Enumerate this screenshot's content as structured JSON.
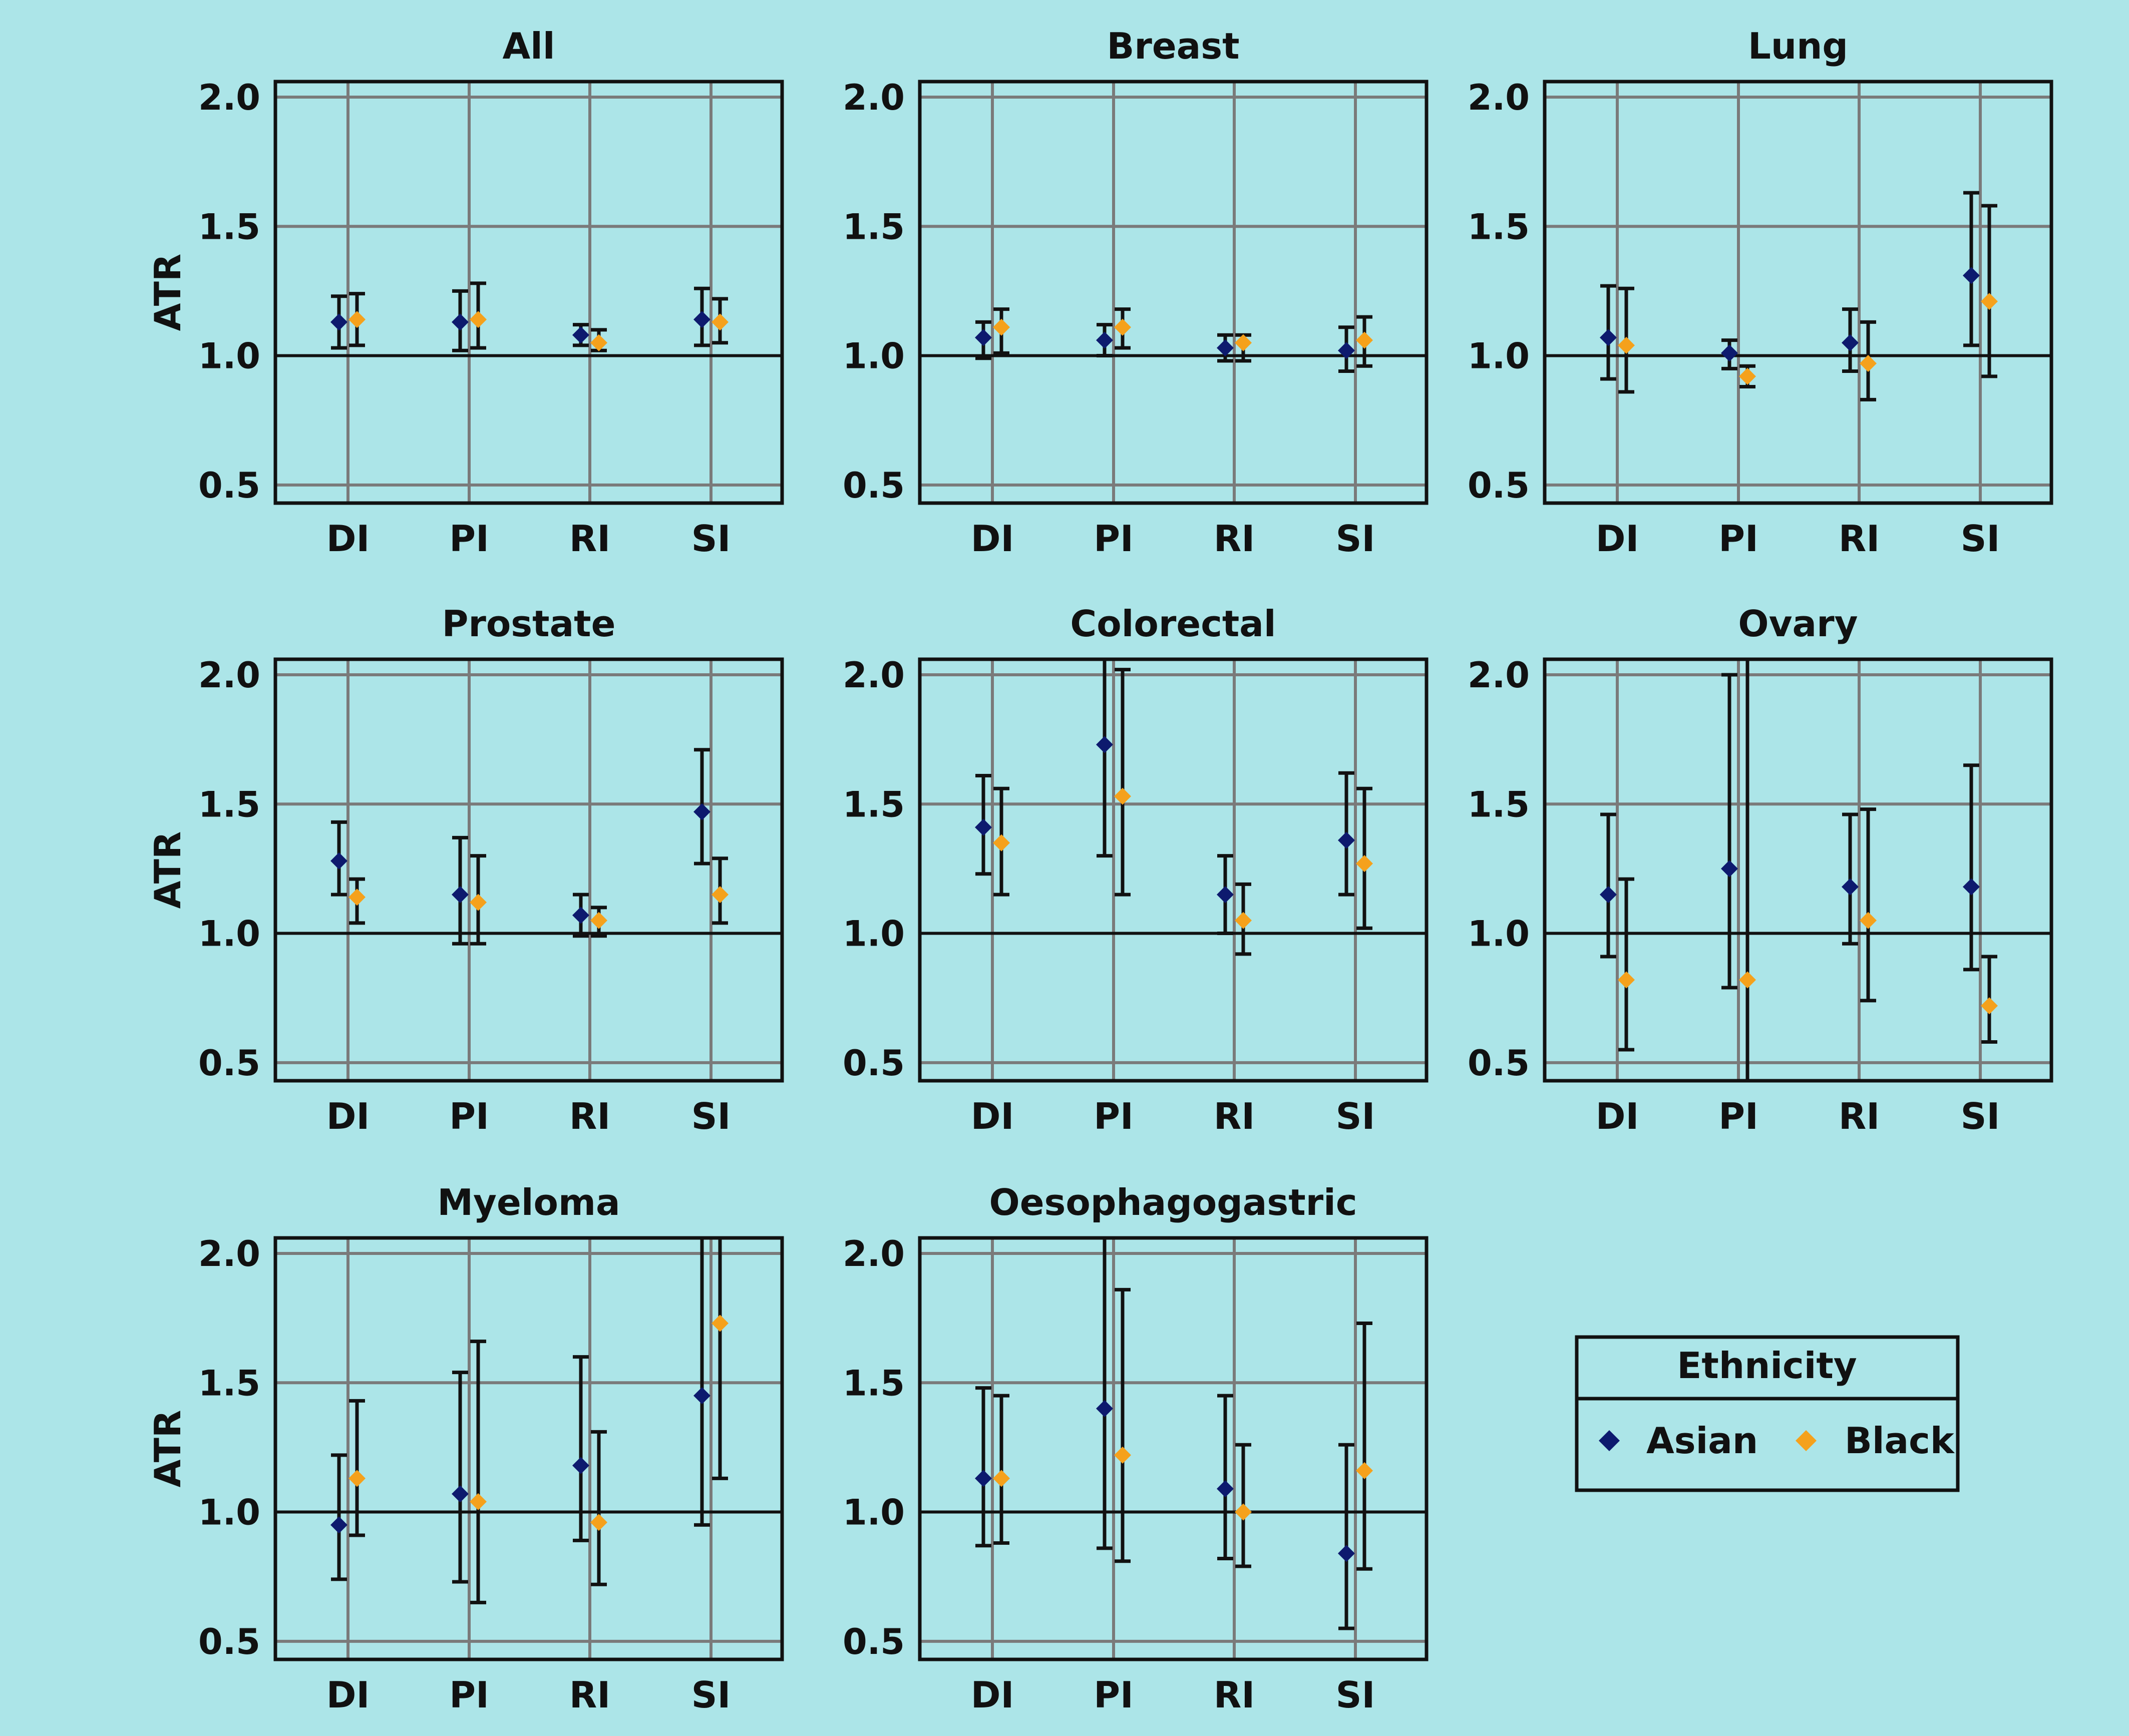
{
  "colors": {
    "background": "#ace5e8",
    "asian": "#0d1a6e",
    "black": "#f5a11c",
    "grid": "#7a7a7a",
    "axis": "#111111"
  },
  "legend": {
    "title": "Ethnicity",
    "items": [
      {
        "label": "Asian",
        "color_key": "asian",
        "marker": "diamond"
      },
      {
        "label": "Black",
        "color_key": "black",
        "marker": "diamond"
      }
    ]
  },
  "chart_data": [
    {
      "type": "scatter",
      "title": "All",
      "ylabel": "ATR",
      "categories": [
        "DI",
        "PI",
        "RI",
        "SI"
      ],
      "yticks": [
        "0.5",
        "1.0",
        "1.5",
        "2.0"
      ],
      "ylim": [
        0.43,
        2.06
      ],
      "reference_line": 1.0,
      "series": [
        {
          "name": "Asian",
          "values": [
            1.13,
            1.13,
            1.08,
            1.14
          ],
          "lower": [
            1.03,
            1.02,
            1.04,
            1.04
          ],
          "upper": [
            1.23,
            1.25,
            1.12,
            1.26
          ]
        },
        {
          "name": "Black",
          "values": [
            1.14,
            1.14,
            1.05,
            1.13
          ],
          "lower": [
            1.04,
            1.03,
            1.02,
            1.05
          ],
          "upper": [
            1.24,
            1.28,
            1.1,
            1.22
          ]
        }
      ]
    },
    {
      "type": "scatter",
      "title": "Breast",
      "ylabel": "",
      "categories": [
        "DI",
        "PI",
        "RI",
        "SI"
      ],
      "yticks": [
        "0.5",
        "1.0",
        "1.5",
        "2.0"
      ],
      "ylim": [
        0.43,
        2.06
      ],
      "reference_line": 1.0,
      "series": [
        {
          "name": "Asian",
          "values": [
            1.07,
            1.06,
            1.03,
            1.02
          ],
          "lower": [
            0.99,
            1.0,
            0.98,
            0.94
          ],
          "upper": [
            1.13,
            1.12,
            1.08,
            1.11
          ]
        },
        {
          "name": "Black",
          "values": [
            1.11,
            1.11,
            1.05,
            1.06
          ],
          "lower": [
            1.01,
            1.03,
            0.98,
            0.96
          ],
          "upper": [
            1.18,
            1.18,
            1.08,
            1.15
          ]
        }
      ]
    },
    {
      "type": "scatter",
      "title": "Lung",
      "ylabel": "",
      "categories": [
        "DI",
        "PI",
        "RI",
        "SI"
      ],
      "yticks": [
        "0.5",
        "1.0",
        "1.5",
        "2.0"
      ],
      "ylim": [
        0.43,
        2.06
      ],
      "reference_line": 1.0,
      "series": [
        {
          "name": "Asian",
          "values": [
            1.07,
            1.01,
            1.05,
            1.31
          ],
          "lower": [
            0.91,
            0.95,
            0.94,
            1.04
          ],
          "upper": [
            1.27,
            1.06,
            1.18,
            1.63
          ]
        },
        {
          "name": "Black",
          "values": [
            1.04,
            0.92,
            0.97,
            1.21
          ],
          "lower": [
            0.86,
            0.88,
            0.83,
            0.92
          ],
          "upper": [
            1.26,
            0.96,
            1.13,
            1.58
          ]
        }
      ]
    },
    {
      "type": "scatter",
      "title": "Prostate",
      "ylabel": "ATR",
      "categories": [
        "DI",
        "PI",
        "RI",
        "SI"
      ],
      "yticks": [
        "0.5",
        "1.0",
        "1.5",
        "2.0"
      ],
      "ylim": [
        0.43,
        2.06
      ],
      "reference_line": 1.0,
      "series": [
        {
          "name": "Asian",
          "values": [
            1.28,
            1.15,
            1.07,
            1.47
          ],
          "lower": [
            1.15,
            0.96,
            0.99,
            1.27
          ],
          "upper": [
            1.43,
            1.37,
            1.15,
            1.71
          ]
        },
        {
          "name": "Black",
          "values": [
            1.14,
            1.12,
            1.05,
            1.15
          ],
          "lower": [
            1.04,
            0.96,
            0.99,
            1.04
          ],
          "upper": [
            1.21,
            1.3,
            1.1,
            1.29
          ]
        }
      ]
    },
    {
      "type": "scatter",
      "title": "Colorectal",
      "ylabel": "",
      "categories": [
        "DI",
        "PI",
        "RI",
        "SI"
      ],
      "yticks": [
        "0.5",
        "1.0",
        "1.5",
        "2.0"
      ],
      "ylim": [
        0.43,
        2.06
      ],
      "reference_line": 1.0,
      "series": [
        {
          "name": "Asian",
          "values": [
            1.41,
            1.73,
            1.15,
            1.36
          ],
          "lower": [
            1.23,
            1.3,
            1.0,
            1.15
          ],
          "upper": [
            1.61,
            2.06,
            1.3,
            1.62
          ]
        },
        {
          "name": "Black",
          "values": [
            1.35,
            1.53,
            1.05,
            1.27
          ],
          "lower": [
            1.15,
            1.15,
            0.92,
            1.02
          ],
          "upper": [
            1.56,
            2.02,
            1.19,
            1.56
          ]
        }
      ]
    },
    {
      "type": "scatter",
      "title": "Ovary",
      "ylabel": "",
      "categories": [
        "DI",
        "PI",
        "RI",
        "SI"
      ],
      "yticks": [
        "0.5",
        "1.0",
        "1.5",
        "2.0"
      ],
      "ylim": [
        0.43,
        2.06
      ],
      "reference_line": 1.0,
      "series": [
        {
          "name": "Asian",
          "values": [
            1.15,
            1.25,
            1.18,
            1.18
          ],
          "lower": [
            0.91,
            0.79,
            0.96,
            0.86
          ],
          "upper": [
            1.46,
            2.0,
            1.46,
            1.65
          ]
        },
        {
          "name": "Black",
          "values": [
            0.82,
            0.82,
            1.05,
            0.72
          ],
          "lower": [
            0.55,
            0.43,
            0.74,
            0.58
          ],
          "upper": [
            1.21,
            2.06,
            1.48,
            0.91
          ]
        }
      ]
    },
    {
      "type": "scatter",
      "title": "Myeloma",
      "ylabel": "ATR",
      "categories": [
        "DI",
        "PI",
        "RI",
        "SI"
      ],
      "yticks": [
        "0.5",
        "1.0",
        "1.5",
        "2.0"
      ],
      "ylim": [
        0.43,
        2.06
      ],
      "reference_line": 1.0,
      "series": [
        {
          "name": "Asian",
          "values": [
            0.95,
            1.07,
            1.18,
            1.45
          ],
          "lower": [
            0.74,
            0.73,
            0.89,
            0.95
          ],
          "upper": [
            1.22,
            1.54,
            1.6,
            2.06
          ]
        },
        {
          "name": "Black",
          "values": [
            1.13,
            1.04,
            0.96,
            1.73
          ],
          "lower": [
            0.91,
            0.65,
            0.72,
            1.13
          ],
          "upper": [
            1.43,
            1.66,
            1.31,
            2.06
          ]
        }
      ]
    },
    {
      "type": "scatter",
      "title": "Oesophagogastric",
      "ylabel": "",
      "categories": [
        "DI",
        "PI",
        "RI",
        "SI"
      ],
      "yticks": [
        "0.5",
        "1.0",
        "1.5",
        "2.0"
      ],
      "ylim": [
        0.43,
        2.06
      ],
      "reference_line": 1.0,
      "series": [
        {
          "name": "Asian",
          "values": [
            1.13,
            1.4,
            1.09,
            0.84
          ],
          "lower": [
            0.87,
            0.86,
            0.82,
            0.55
          ],
          "upper": [
            1.48,
            2.06,
            1.45,
            1.26
          ]
        },
        {
          "name": "Black",
          "values": [
            1.13,
            1.22,
            1.0,
            1.16
          ],
          "lower": [
            0.88,
            0.81,
            0.79,
            0.78
          ],
          "upper": [
            1.45,
            1.86,
            1.26,
            1.73
          ]
        }
      ]
    }
  ]
}
